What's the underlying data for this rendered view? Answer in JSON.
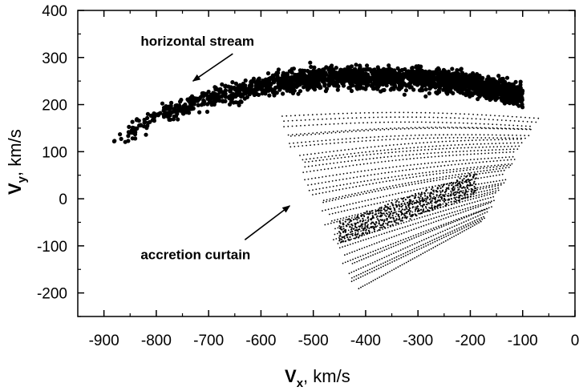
{
  "chart_data": {
    "type": "scatter",
    "xlabel": {
      "main": "V",
      "sub": "x",
      "unit": ",  km/s"
    },
    "ylabel": {
      "main": "V",
      "sub": "y",
      "unit": ",  km/s"
    },
    "xlim": [
      -950,
      0
    ],
    "ylim": [
      -250,
      400
    ],
    "xticks": [
      -900,
      -800,
      -700,
      -600,
      -500,
      -400,
      -300,
      -200,
      -100,
      0
    ],
    "yticks": [
      -200,
      -100,
      0,
      100,
      200,
      300,
      400
    ],
    "grid": false,
    "series": [
      {
        "key": "stream",
        "marker": "large-dot",
        "color": "#000000",
        "model": {
          "x_range": [
            -885,
            -100
          ],
          "count": 2200,
          "center_curve": [
            [
              -885,
              120
            ],
            [
              -800,
              175
            ],
            [
              -700,
              215
            ],
            [
              -600,
              240
            ],
            [
              -500,
              258
            ],
            [
              -400,
              258
            ],
            [
              -300,
              255
            ],
            [
              -200,
              245
            ],
            [
              -150,
              232
            ],
            [
              -100,
              220
            ]
          ],
          "scatter": 16
        }
      },
      {
        "key": "curtain",
        "marker": "small-dot",
        "color": "#000000",
        "model": {
          "line_count": 34,
          "points_per_line": 60,
          "start_x_range": [
            -560,
            -415
          ],
          "end_x_range": [
            -70,
            -175
          ],
          "start_y_range": [
            170,
            -185
          ],
          "end_y_range": [
            170,
            -50
          ],
          "dense_band": {
            "start": [
              -450,
              -70
            ],
            "end": [
              -190,
              35
            ]
          }
        }
      }
    ],
    "annotations": [
      {
        "text": "horizontal stream",
        "anchor_x": -730,
        "anchor_y": 250,
        "text_x": -830,
        "text_y": 325
      },
      {
        "text": "accretion curtain",
        "anchor_x": -545,
        "anchor_y": -15,
        "text_x": -830,
        "text_y": -128
      }
    ]
  }
}
